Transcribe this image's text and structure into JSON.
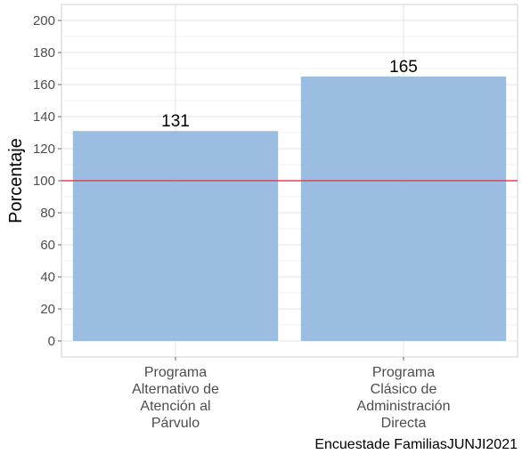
{
  "chart_data": {
    "type": "bar",
    "categories": [
      [
        "Programa",
        "Alternativo de",
        "Atención al",
        "Párvulo"
      ],
      [
        "Programa",
        "Clásico de",
        "Administración",
        "Directa"
      ]
    ],
    "values": [
      131,
      165
    ],
    "value_labels": [
      "131",
      "165"
    ],
    "xlabel": "",
    "ylabel": "Porcentaje",
    "ylim": [
      -10,
      210
    ],
    "yticks": [
      0,
      20,
      40,
      60,
      80,
      100,
      120,
      140,
      160,
      180,
      200
    ],
    "reference_line": {
      "value": 100,
      "color": "#e0435a"
    },
    "grid": true,
    "bar_color": "#8fb6de",
    "caption": "Encuestade FamiliasJUNJI2021"
  }
}
